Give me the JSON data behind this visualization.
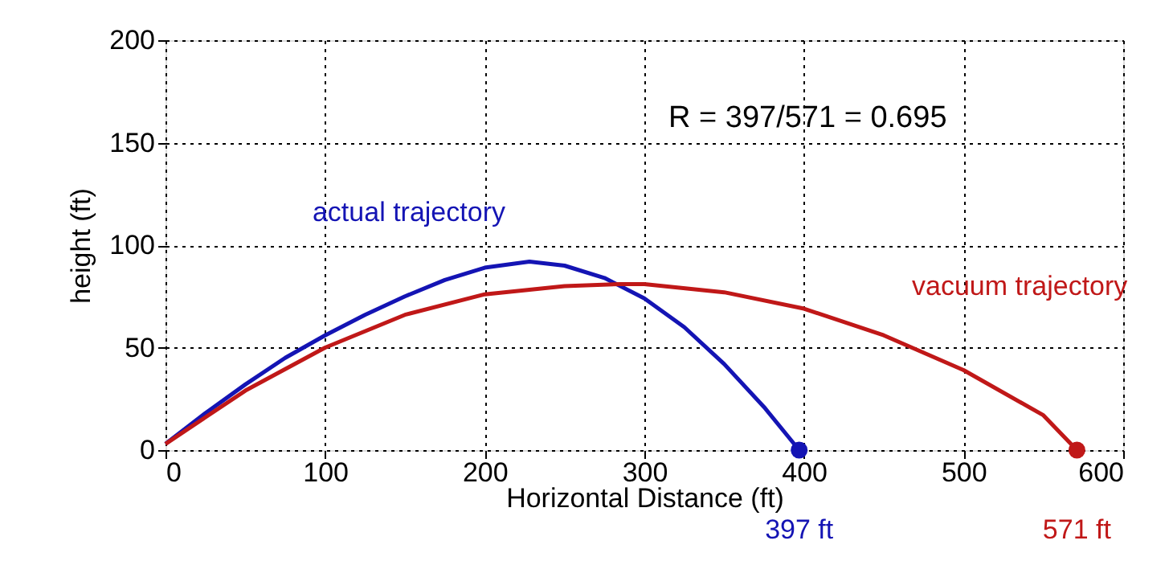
{
  "chart_data": {
    "type": "line",
    "xlabel": "Horizontal Distance (ft)",
    "ylabel": "height (ft)",
    "xlim": [
      0,
      600
    ],
    "xticks": [
      0,
      100,
      200,
      300,
      400,
      500,
      600
    ],
    "ylim": [
      0,
      200
    ],
    "yticks": [
      0,
      50,
      100,
      150,
      200
    ],
    "grid": true,
    "marker": "none",
    "line_style": "solid",
    "series": [
      {
        "name": "actual trajectory",
        "color": "#1414b4",
        "x": [
          0,
          25,
          50,
          75,
          100,
          125,
          150,
          175,
          200,
          228,
          250,
          275,
          300,
          325,
          350,
          375,
          397
        ],
        "values": [
          3,
          18,
          32,
          45,
          56,
          66,
          75,
          83,
          89,
          92,
          90,
          84,
          74,
          60,
          42,
          21,
          0
        ]
      },
      {
        "name": "vacuum trajectory",
        "color": "#c01818",
        "x": [
          0,
          50,
          100,
          150,
          200,
          250,
          285,
          300,
          350,
          400,
          450,
          500,
          550,
          571
        ],
        "values": [
          3,
          29,
          50,
          66,
          76,
          80,
          81,
          81,
          77,
          69,
          56,
          39,
          17,
          0
        ]
      },
      {
        "type": "scatter",
        "marker": "circle",
        "color": "#1414b4",
        "x": [
          397
        ],
        "values": [
          0
        ]
      },
      {
        "type": "scatter",
        "marker": "circle",
        "color": "#c01818",
        "x": [
          571
        ],
        "values": [
          0
        ]
      }
    ],
    "annotations": [
      "R = 397/571 = 0.695",
      {
        "text": "397 ft",
        "x": 397,
        "y": 0
      },
      {
        "text": "571 ft",
        "x": 571,
        "y": 0
      }
    ]
  }
}
